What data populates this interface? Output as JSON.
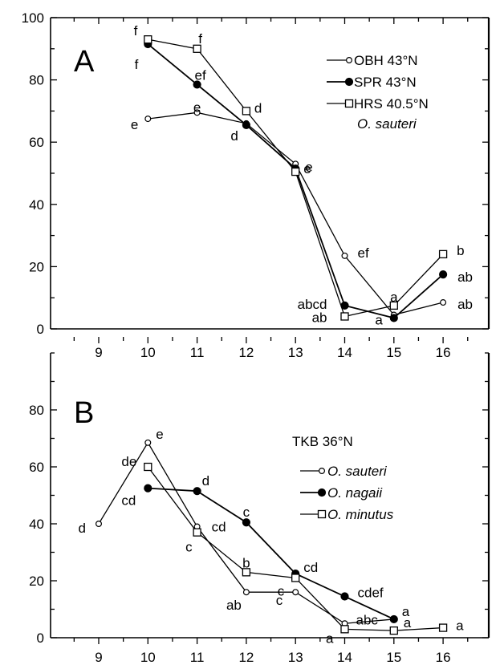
{
  "chart_data": [
    {
      "type": "line",
      "panel_label": "A",
      "x_ticks": [
        9,
        10,
        11,
        12,
        13,
        14,
        15,
        16
      ],
      "y_ticks": [
        0,
        20,
        40,
        60,
        80,
        100
      ],
      "xlim": [
        8.0,
        17.0
      ],
      "ylim": [
        0,
        100
      ],
      "legend_placement": "top-right",
      "legend_note": "O. sauteri",
      "series": [
        {
          "name": "OBH 43°N",
          "marker": "open-circle",
          "x": [
            10,
            11,
            12,
            13,
            14,
            15,
            16
          ],
          "y": [
            67.5,
            69.5,
            66,
            53,
            23.5,
            4.5,
            8.5
          ],
          "labels": [
            "e",
            "e",
            "",
            "",
            "ef",
            "",
            "ab"
          ]
        },
        {
          "name": "SPR 43°N",
          "marker": "filled-circle",
          "x": [
            10,
            11,
            12,
            13,
            14,
            15,
            16
          ],
          "y": [
            91.5,
            78.5,
            65.5,
            51.5,
            7.5,
            3.5,
            17.5
          ],
          "labels": [
            "f",
            "ef",
            "d",
            "e",
            "abcd",
            "a",
            "ab"
          ]
        },
        {
          "name": "HRS 40.5°N",
          "marker": "open-square",
          "x": [
            10,
            11,
            12,
            13,
            14,
            15,
            16
          ],
          "y": [
            93,
            90,
            70,
            50.5,
            4,
            7.5,
            24
          ],
          "labels": [
            "f",
            "f",
            "d",
            "e",
            "ab",
            "a",
            "b"
          ]
        }
      ]
    },
    {
      "type": "line",
      "panel_label": "B",
      "x_ticks": [
        9,
        10,
        11,
        12,
        13,
        14,
        15,
        16
      ],
      "y_ticks": [
        0,
        20,
        40,
        60,
        80
      ],
      "xlim": [
        8.0,
        17.0
      ],
      "ylim": [
        0,
        100
      ],
      "legend_placement": "top-right",
      "legend_header": "TKB 36°N",
      "series": [
        {
          "name": "O. sauteri",
          "marker": "open-circle",
          "x": [
            9,
            10,
            11,
            12,
            13,
            14,
            15
          ],
          "y": [
            40,
            68.5,
            39,
            16,
            16,
            5,
            6.5
          ],
          "labels": [
            "d",
            "e",
            "cd",
            "ab",
            "c",
            "abc",
            "a"
          ]
        },
        {
          "name": "O. nagaii",
          "marker": "filled-circle",
          "x": [
            10,
            11,
            12,
            13,
            14,
            15
          ],
          "y": [
            52.5,
            51.5,
            40.5,
            22.5,
            14.5,
            6.5
          ],
          "labels": [
            "cd",
            "d",
            "c",
            "cd",
            "cdef",
            "a"
          ]
        },
        {
          "name": "O. minutus",
          "marker": "open-square",
          "x": [
            10,
            11,
            12,
            13,
            14,
            15,
            16
          ],
          "y": [
            60,
            37,
            23,
            21,
            3,
            2.5,
            3.5
          ],
          "labels": [
            "de",
            "c",
            "b",
            "c",
            "a",
            "",
            "a"
          ]
        }
      ]
    }
  ]
}
